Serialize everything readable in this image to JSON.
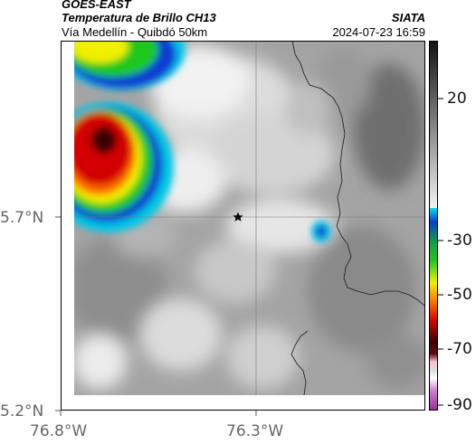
{
  "header": {
    "satellite": "GOES-EAST",
    "product": "Temperatura de Brillo CH13",
    "region": "Vía Medellín - Quibdó 50km",
    "brand": "SIATA",
    "timestamp": "2024-07-23 16:59"
  },
  "map": {
    "latitude_ticks": [
      "5.7°N",
      "5.2°N"
    ],
    "longitude_ticks": [
      "76.8°W",
      "76.3°W"
    ],
    "marker": "star-marker"
  },
  "colorbar": {
    "tick_labels": [
      "20",
      "-30",
      "-50",
      "-70",
      "-90"
    ],
    "colors": {
      "black": "#111111",
      "gray_light": "#f2f2f2",
      "cyan": "#00c8e6",
      "blue": "#0a3cd2",
      "green": "#1ec81e",
      "yellow": "#f0f000",
      "orange": "#ff6a00",
      "red": "#d20000",
      "dark_red": "#3c0000",
      "pink": "#ffc0d0",
      "magenta": "#b43cb4"
    }
  }
}
